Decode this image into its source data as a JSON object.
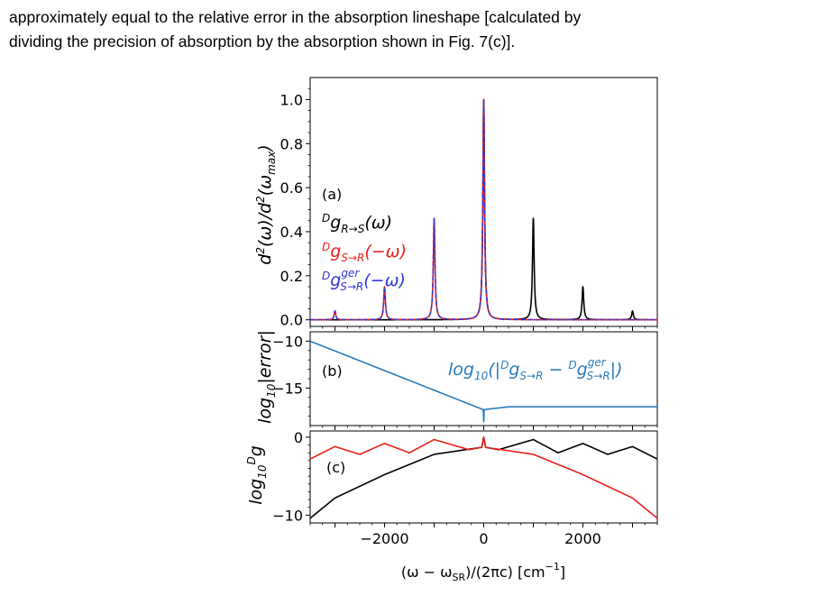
{
  "paragraph": {
    "line1": "approximately equal to the relative error in the absorption lineshape [calculated by",
    "line2": "dividing the precision of absorption by the absorption shown in Fig. 7(c)]."
  },
  "figure": {
    "panel_a_label": "(a)",
    "panel_b_label": "(b)",
    "panel_c_label": "(c)",
    "xlabel": "(ω − ω_SR)/(2πc) [cm^-1]",
    "colors": {
      "black": "#000000",
      "red": "#e8201c",
      "blue": "#3535d8",
      "steel": "#2b7bba"
    }
  },
  "chart_data": [
    {
      "type": "line",
      "panel": "a",
      "ylabel": "d²(ω)/d²(ω_max)",
      "xlim": [
        -3500,
        3500
      ],
      "ylim": [
        -0.03,
        1.1
      ],
      "yticks": [
        "0.0",
        "0.2",
        "0.4",
        "0.6",
        "0.8",
        "1.0"
      ],
      "series": [
        {
          "name": "D g R→S(ω)",
          "color": "#000000",
          "style": "solid",
          "peaks": [
            [
              0,
              1.0
            ],
            [
              1000,
              0.46
            ],
            [
              2000,
              0.15
            ],
            [
              3000,
              0.04
            ]
          ]
        },
        {
          "name": "D g S→R(−ω)",
          "color": "#e8201c",
          "style": "solid",
          "peaks": [
            [
              0,
              1.0
            ],
            [
              -1000,
              0.46
            ],
            [
              -2000,
              0.15
            ],
            [
              -3000,
              0.04
            ]
          ]
        },
        {
          "name": "D g ger S→R(−ω)",
          "color": "#3535d8",
          "style": "dashed",
          "peaks": [
            [
              0,
              1.0
            ],
            [
              -1000,
              0.46
            ],
            [
              -2000,
              0.15
            ],
            [
              -3000,
              0.04
            ]
          ]
        }
      ]
    },
    {
      "type": "line",
      "panel": "b",
      "ylabel": "log10|error|",
      "xlim": [
        -3500,
        3500
      ],
      "ylim": [
        -19,
        -9
      ],
      "yticks": [
        "−10",
        "−15"
      ],
      "series": [
        {
          "name": "log10(|D g S→R − D g ger S→R|)",
          "color": "#2b7bba",
          "points": [
            [
              -3500,
              -10.0
            ],
            [
              -10,
              -17.3
            ],
            [
              0,
              -18.6
            ],
            [
              10,
              -17.3
            ],
            [
              500,
              -17.0
            ],
            [
              3500,
              -17.0
            ]
          ]
        }
      ]
    },
    {
      "type": "line",
      "panel": "c",
      "ylabel": "log10 D g",
      "xlim": [
        -3500,
        3500
      ],
      "ylim": [
        -11,
        0.8
      ],
      "yticks": [
        "0",
        "−10"
      ],
      "xticks": [
        "−2000",
        "0",
        "2000"
      ],
      "series": [
        {
          "name": "black",
          "color": "#000000",
          "points": [
            [
              -3500,
              -10.4
            ],
            [
              -3000,
              -7.8
            ],
            [
              -2000,
              -4.8
            ],
            [
              -1000,
              -2.2
            ],
            [
              -40,
              -1.3
            ],
            [
              0,
              0
            ],
            [
              40,
              -1.3
            ],
            [
              300,
              -1.6
            ],
            [
              1000,
              -0.3
            ],
            [
              1500,
              -2.0
            ],
            [
              2000,
              -0.8
            ],
            [
              2500,
              -2.2
            ],
            [
              3000,
              -1.2
            ],
            [
              3500,
              -2.8
            ]
          ]
        },
        {
          "name": "red",
          "color": "#e8201c",
          "points": [
            [
              -3500,
              -2.8
            ],
            [
              -3000,
              -1.2
            ],
            [
              -2500,
              -2.2
            ],
            [
              -2000,
              -0.8
            ],
            [
              -1500,
              -2.0
            ],
            [
              -1000,
              -0.3
            ],
            [
              -300,
              -1.6
            ],
            [
              -40,
              -1.3
            ],
            [
              0,
              0
            ],
            [
              40,
              -1.3
            ],
            [
              1000,
              -2.2
            ],
            [
              2000,
              -4.8
            ],
            [
              3000,
              -7.8
            ],
            [
              3500,
              -10.4
            ]
          ]
        }
      ]
    }
  ]
}
